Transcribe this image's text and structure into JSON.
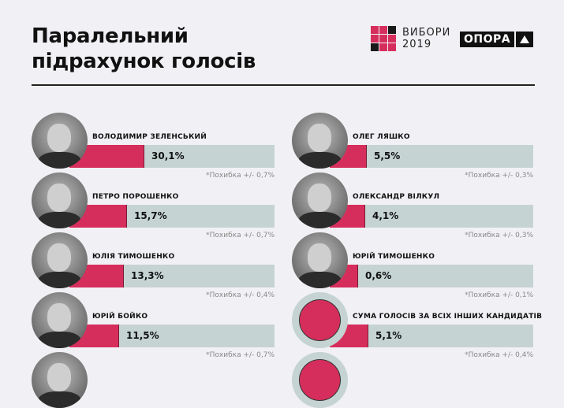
{
  "header": {
    "title_line1": "Паралельний",
    "title_line2": "підрахунок голосів",
    "vybory_line1": "ВИБОРИ",
    "vybory_line2": "2019",
    "opora_label": "ОПОРА"
  },
  "colors": {
    "accent": "#d62e5c",
    "bar_bg": "#c5d3d3",
    "background": "#f1f1f5"
  },
  "chart_data": {
    "type": "bar",
    "title": "Паралельний підрахунок голосів",
    "categories": [
      "Володимир Зеленський",
      "Петро Порошенко",
      "Юлія Тимошенко",
      "Юрій Бойко",
      "Олег Ляшко",
      "Олександр Вілкул",
      "Юрій Тимошенко",
      "Сума голосів за всіх інших кандидатів"
    ],
    "values": [
      30.1,
      15.7,
      13.3,
      11.5,
      5.5,
      4.1,
      0.6,
      5.1
    ],
    "errors": [
      0.7,
      0.7,
      0.4,
      0.7,
      0.3,
      0.3,
      0.1,
      0.4
    ],
    "unit": "%"
  },
  "left": [
    {
      "name": "ВОЛОДИМИР ЗЕЛЕНСЬКИЙ",
      "pct": "30,1%",
      "err": "*Похибка +/- 0,7%",
      "fill": 94
    },
    {
      "name": "ПЕТРО ПОРОШЕНКО",
      "pct": "15,7%",
      "err": "*Похибка +/- 0,7%",
      "fill": 72
    },
    {
      "name": "ЮЛІЯ ТИМОШЕНКО",
      "pct": "13,3%",
      "err": "*Похибка +/- 0,4%",
      "fill": 68
    },
    {
      "name": "ЮРІЙ БОЙКО",
      "pct": "11,5%",
      "err": "*Похибка +/- 0,7%",
      "fill": 62
    }
  ],
  "right": [
    {
      "name": "ОЛЕГ ЛЯШКО",
      "pct": "5,5%",
      "err": "*Похибка +/- 0,3%",
      "fill": 46
    },
    {
      "name": "ОЛЕКСАНДР ВІЛКУЛ",
      "pct": "4,1%",
      "err": "*Похибка +/- 0,3%",
      "fill": 44
    },
    {
      "name": "ЮРІЙ ТИМОШЕНКО",
      "pct": "0,6%",
      "err": "*Похибка +/- 0,1%",
      "fill": 35
    },
    {
      "name": "СУМА ГОЛОСІВ ЗА ВСІХ ІНШИХ КАНДИДАТІВ",
      "pct": "5,1%",
      "err": "*Похибка +/- 0,4%",
      "fill": 48
    }
  ]
}
